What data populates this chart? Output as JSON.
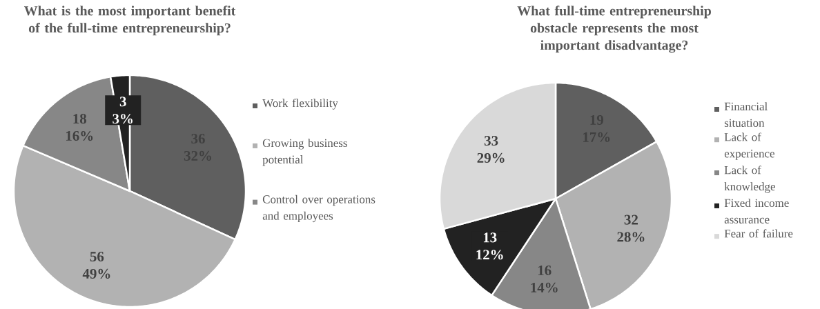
{
  "chart_data": [
    {
      "type": "pie",
      "title": "What is the most important benefit of the full-time entrepreneurship?",
      "categories": [
        "Work flexibility",
        "Growing business potential",
        "Control over operations and employees",
        null
      ],
      "values": [
        36,
        56,
        18,
        3
      ],
      "colors": [
        "#5f5f5f",
        "#b2b2b2",
        "#878787",
        "#222222"
      ],
      "value_labels": [
        "36 32%",
        "56 49%",
        "18 16%",
        "3 3%"
      ],
      "legend": "right"
    },
    {
      "type": "pie",
      "title": "What full-time entrepreneurship obstacle represents the most important disadvantage?",
      "categories": [
        "Financial situation",
        "Lack of experience",
        "Lack of knowledge",
        "Fixed income assurance",
        "Fear of failure"
      ],
      "values": [
        19,
        32,
        16,
        13,
        33
      ],
      "colors": [
        "#5f5f5f",
        "#b2b2b2",
        "#878787",
        "#222222",
        "#d9d9d9"
      ],
      "value_labels": [
        "19 17%",
        "32 28%",
        "16 14%",
        "13 12%",
        "33 29%"
      ],
      "legend": "right"
    }
  ]
}
